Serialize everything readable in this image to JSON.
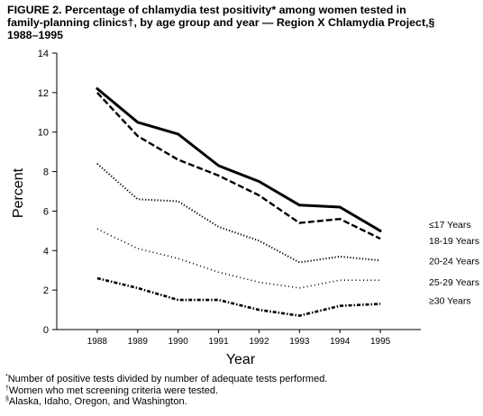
{
  "title_lines": [
    "FIGURE 2. Percentage of chlamydia test positivity* among women tested in",
    "family-planning clinics†, by age group and year — Region X Chlamydia Project,§",
    "1988–1995"
  ],
  "footnotes": [
    {
      "mark": "*",
      "text": "Number of positive tests divided by number of adequate tests performed."
    },
    {
      "mark": "†",
      "text": "Women who met screening criteria were tested."
    },
    {
      "mark": "§",
      "text": "Alaska, Idaho, Oregon, and Washington."
    }
  ],
  "chart_data": {
    "type": "line",
    "title": "FIGURE 2. Percentage of chlamydia test positivity* among women tested in family-planning clinics†, by age group and year — Region X Chlamydia Project,§ 1988–1995",
    "xlabel": "Year",
    "ylabel": "Percent",
    "x": [
      1988,
      1989,
      1990,
      1991,
      1992,
      1993,
      1994,
      1995
    ],
    "xlim": [
      1987,
      1996
    ],
    "ylim": [
      0,
      14
    ],
    "yticks": [
      0,
      2,
      4,
      6,
      8,
      10,
      12,
      14
    ],
    "xticks": [
      1988,
      1989,
      1990,
      1991,
      1992,
      1993,
      1994,
      1995
    ],
    "grid": false,
    "legend": "right, at line ends",
    "series": [
      {
        "name": "≤17 Years",
        "style": "solid",
        "values": [
          12.2,
          10.5,
          9.9,
          8.3,
          7.5,
          6.3,
          6.2,
          5.0
        ]
      },
      {
        "name": "18-19 Years",
        "style": "dashed",
        "values": [
          12.0,
          9.8,
          8.6,
          7.8,
          6.8,
          5.4,
          5.6,
          4.6
        ]
      },
      {
        "name": "20-24 Years",
        "style": "dotted-dense",
        "values": [
          8.4,
          6.6,
          6.5,
          5.2,
          4.5,
          3.4,
          3.7,
          3.5
        ]
      },
      {
        "name": "25-29 Years",
        "style": "dotted-sparse",
        "values": [
          5.1,
          4.1,
          3.6,
          2.9,
          2.4,
          2.1,
          2.5,
          2.5
        ]
      },
      {
        "name": "≥30 Years",
        "style": "dashdot",
        "values": [
          2.6,
          2.1,
          1.5,
          1.5,
          1.0,
          0.7,
          1.2,
          1.3
        ]
      }
    ]
  }
}
